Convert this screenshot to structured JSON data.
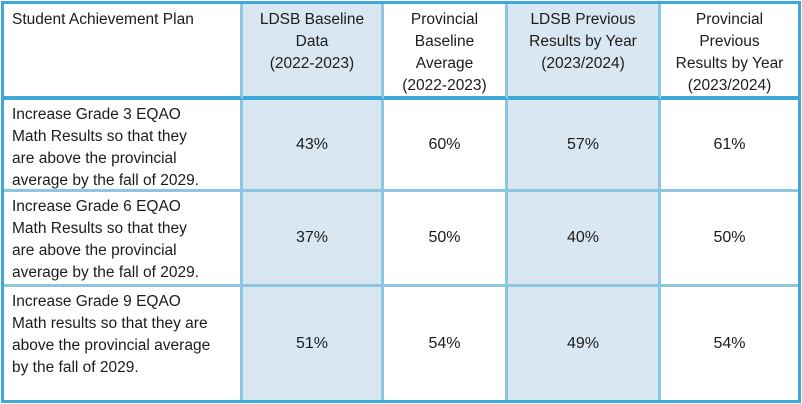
{
  "colors": {
    "accent_border": "#3fa8da",
    "inner_border": "#8cc6e0",
    "highlight_fill": "#d9e7f3",
    "text": "#1c1c1c"
  },
  "table": {
    "header": [
      "Student Achievement Plan",
      "LDSB Baseline\nData\n(2022-2023)",
      "Provincial\nBaseline\nAverage\n(2022-2023)",
      "LDSB Previous\nResults by Year\n(2023/2024)",
      "Provincial\nPrevious\nResults by Year\n(2023/2024)"
    ],
    "rows": [
      {
        "goal": "Increase Grade 3 EQAO\nMath Results so that they\nare above the provincial\naverage by the fall of 2029.",
        "values": [
          "43%",
          "60%",
          "57%",
          "61%"
        ]
      },
      {
        "goal": "Increase Grade 6 EQAO\nMath Results so that they\nare above the provincial\naverage by the fall of 2029.",
        "values": [
          "37%",
          "50%",
          "40%",
          "50%"
        ]
      },
      {
        "goal": "Increase Grade 9 EQAO\nMath results so that they are\nabove the provincial average\nby the fall of 2029.",
        "values": [
          "51%",
          "54%",
          "49%",
          "54%"
        ]
      }
    ]
  }
}
